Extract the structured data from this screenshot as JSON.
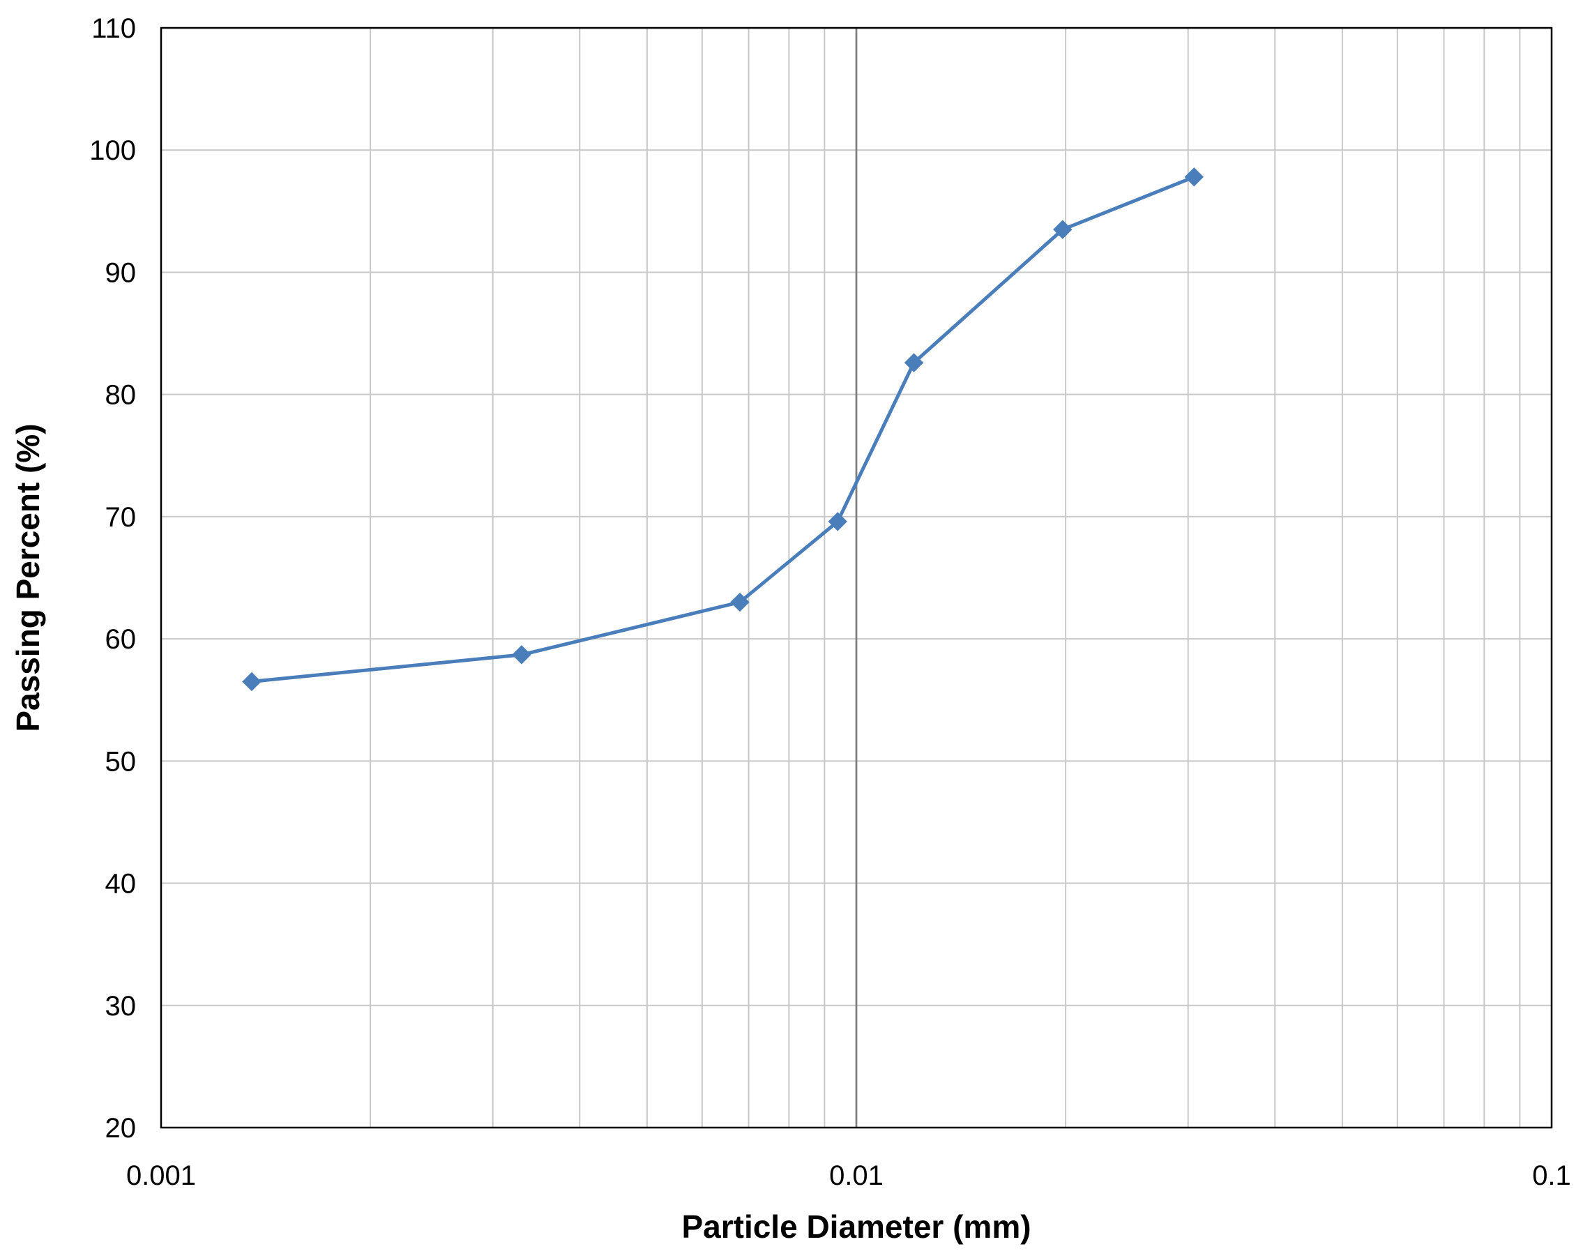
{
  "chart_data": {
    "type": "line",
    "title": "",
    "xlabel": "Particle Diameter (mm)",
    "ylabel": "Passing Percent (%)",
    "x_scale": "log",
    "xlim": [
      0.001,
      0.1
    ],
    "ylim": [
      20,
      110
    ],
    "x_ticks": [
      "0.001",
      "0.01",
      "0.1"
    ],
    "y_ticks": [
      "20",
      "30",
      "40",
      "50",
      "60",
      "70",
      "80",
      "90",
      "100",
      "110"
    ],
    "grid": true,
    "legend": "none",
    "series": [
      {
        "color": "#4a7ebb",
        "marker": "diamond",
        "x": [
          0.00135,
          0.0033,
          0.0068,
          0.0094,
          0.0121,
          0.0198,
          0.0306
        ],
        "y": [
          56.5,
          58.7,
          63.0,
          69.6,
          82.6,
          93.5,
          97.8
        ]
      }
    ]
  }
}
